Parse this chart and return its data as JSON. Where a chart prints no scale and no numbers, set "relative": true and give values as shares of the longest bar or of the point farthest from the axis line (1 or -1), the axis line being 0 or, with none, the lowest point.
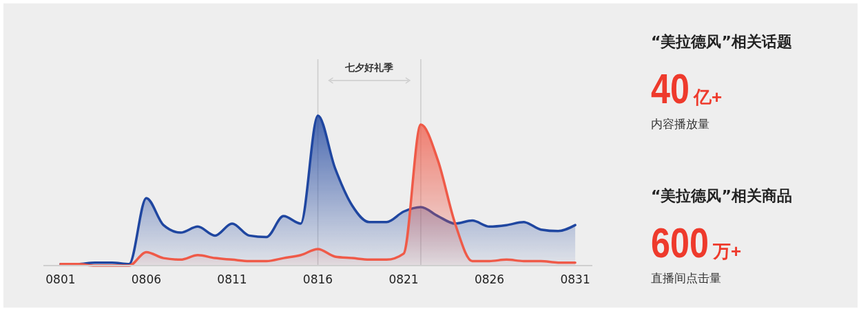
{
  "chart_data": {
    "type": "area",
    "relative": true,
    "xlim": [
      "--07-31",
      "--09-01"
    ],
    "xticks": [
      {
        "value": "--08-01",
        "label": "0801"
      },
      {
        "value": "--08-06",
        "label": "0806"
      },
      {
        "value": "--08-11",
        "label": "0811"
      },
      {
        "value": "--08-16",
        "label": "0816"
      },
      {
        "value": "--08-21",
        "label": "0821"
      },
      {
        "value": "--08-26",
        "label": "0826"
      },
      {
        "value": "--08-31",
        "label": "0831"
      }
    ],
    "x": [
      "--08-01",
      "--08-02",
      "--08-03",
      "--08-04",
      "--08-05",
      "--08-06",
      "--08-07",
      "--08-08",
      "--08-09",
      "--08-10",
      "--08-11",
      "--08-12",
      "--08-13",
      "--08-14",
      "--08-15",
      "--08-16",
      "--08-17",
      "--08-18",
      "--08-19",
      "--08-20",
      "--08-21",
      "--08-22",
      "--08-23",
      "--08-24",
      "--08-25",
      "--08-26",
      "--08-27",
      "--08-28",
      "--08-29",
      "--08-30",
      "--08-31"
    ],
    "series": [
      {
        "color": "#1f46a0",
        "values": [
          0.01,
          0.01,
          0.02,
          0.02,
          0.01,
          0.45,
          0.27,
          0.22,
          0.26,
          0.2,
          0.28,
          0.2,
          0.19,
          0.33,
          0.28,
          1,
          0.65,
          0.4,
          0.29,
          0.29,
          0.36,
          0.39,
          0.33,
          0.28,
          0.3,
          0.26,
          0.27,
          0.29,
          0.24,
          0.23,
          0.27
        ]
      },
      {
        "color": "#ef5a48",
        "values": [
          0.01,
          0.01,
          0,
          0,
          0,
          0.09,
          0.05,
          0.04,
          0.07,
          0.05,
          0.04,
          0.03,
          0.03,
          0.05,
          0.07,
          0.11,
          0.06,
          0.05,
          0.04,
          0.04,
          0.08,
          0.94,
          0.7,
          0.28,
          0.03,
          0.03,
          0.04,
          0.03,
          0.03,
          0.02,
          0.02
        ]
      }
    ],
    "ref_lines": [
      {
        "axis": "x",
        "value": "--08-16",
        "color": "#cccccc"
      },
      {
        "axis": "x",
        "value": "--08-22",
        "color": "#cccccc"
      }
    ],
    "annotations": [
      "七夕好礼季",
      "“美拉德风”相关话题",
      "40亿+",
      "内容播放量",
      "“美拉德风”相关商品",
      "600万+",
      "直播间点击量"
    ]
  }
}
